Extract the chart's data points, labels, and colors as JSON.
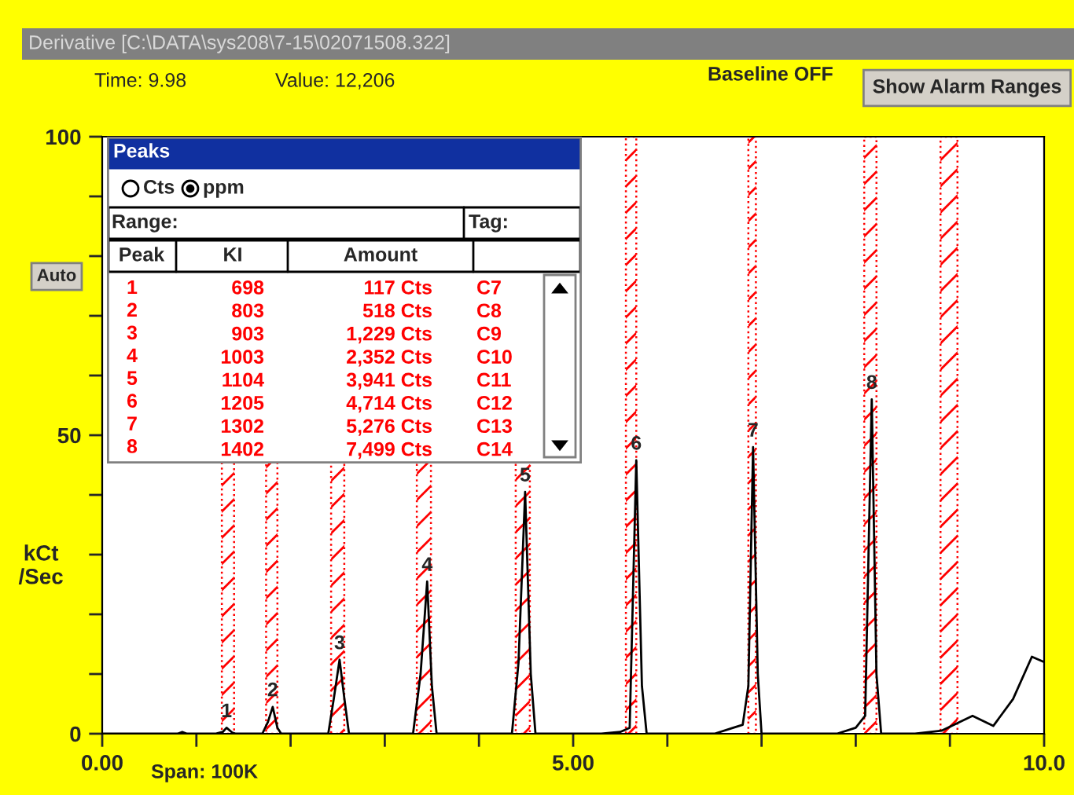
{
  "chart_data": [
    {
      "type": "line",
      "title": "Derivative [C:\\DATA\\sys208\\7-15\\02071508.322]",
      "ylabel": "kCt\n/Sec",
      "xlim": [
        0,
        10
      ],
      "ylim": [
        0,
        100
      ],
      "xticks": [
        {
          "value": 0,
          "label": "0.00"
        },
        {
          "value": 1,
          "label": null
        },
        {
          "value": 2,
          "label": null
        },
        {
          "value": 3,
          "label": null
        },
        {
          "value": 4,
          "label": null
        },
        {
          "value": 5,
          "label": "5.00"
        },
        {
          "value": 6,
          "label": null
        },
        {
          "value": 7,
          "label": null
        },
        {
          "value": 8,
          "label": null
        },
        {
          "value": 9,
          "label": null
        },
        {
          "value": 10,
          "label": "10.0"
        }
      ],
      "yticks": [
        0,
        {
          "value": 10,
          "label": null
        },
        {
          "value": 20,
          "label": null
        },
        {
          "value": 30,
          "label": null
        },
        {
          "value": 40,
          "label": null
        },
        50,
        {
          "value": 60,
          "label": null
        },
        {
          "value": 70,
          "label": null
        },
        {
          "value": 80,
          "label": null
        },
        {
          "value": 90,
          "label": null
        },
        100
      ],
      "grid": false,
      "series": [
        {
          "color": "#000000",
          "x": [
            0,
            0.8,
            0.85,
            0.9,
            1.2,
            1.28,
            1.32,
            1.38,
            1.42,
            1.7,
            1.76,
            1.81,
            1.86,
            1.9,
            2.4,
            2.46,
            2.52,
            2.57,
            2.62,
            3.3,
            3.38,
            3.45,
            3.5,
            3.55,
            4.35,
            4.42,
            4.49,
            4.55,
            4.6,
            5.3,
            5.5,
            5.6,
            5.67,
            5.73,
            5.78,
            6.5,
            6.7,
            6.8,
            6.86,
            6.91,
            6.96,
            7.0,
            7.8,
            8.0,
            8.1,
            8.17,
            8.22,
            8.27,
            8.63,
            8.91,
            9.24,
            9.46,
            9.67,
            9.87,
            10
          ],
          "values": [
            0,
            0,
            0.3,
            0,
            0,
            0.3,
            1,
            0.2,
            0,
            0,
            2,
            4.5,
            1,
            0,
            0,
            6,
            12.4,
            6,
            0,
            0,
            10,
            25.5,
            8,
            0,
            0,
            12,
            40.5,
            10,
            0,
            0,
            0.3,
            1,
            45.8,
            8,
            0,
            0,
            1,
            1.5,
            8,
            48,
            10,
            0,
            0,
            1,
            3,
            56,
            10,
            0,
            0,
            0.5,
            3,
            1.3,
            5.8,
            12.9,
            12
          ]
        }
      ],
      "bands": [
        {
          "axis": "x",
          "from": 1.27,
          "to": 1.4,
          "color": "#ff0000"
        },
        {
          "axis": "x",
          "from": 1.74,
          "to": 1.86,
          "color": "#ff0000"
        },
        {
          "axis": "x",
          "from": 2.43,
          "to": 2.57,
          "color": "#ff0000"
        },
        {
          "axis": "x",
          "from": 3.34,
          "to": 3.49,
          "color": "#ff0000"
        },
        {
          "axis": "x",
          "from": 4.39,
          "to": 4.54,
          "color": "#ff0000"
        },
        {
          "axis": "x",
          "from": 5.56,
          "to": 5.67,
          "color": "#ff0000"
        },
        {
          "axis": "x",
          "from": 6.86,
          "to": 6.94,
          "color": "#ff0000"
        },
        {
          "axis": "x",
          "from": 8.09,
          "to": 8.22,
          "color": "#ff0000"
        },
        {
          "axis": "x",
          "from": 8.9,
          "to": 9.08,
          "color": "#ff0000"
        }
      ],
      "annotations": [
        "Time: 9.98",
        "Value: 12,206",
        "Baseline OFF",
        "Show Alarm Ranges",
        "Auto",
        "Span: 100K",
        {
          "text": "1",
          "x": 1.32,
          "y": 1
        },
        {
          "text": "2",
          "x": 1.81,
          "y": 4.5
        },
        {
          "text": "3",
          "x": 2.52,
          "y": 12.4
        },
        {
          "text": "4",
          "x": 3.45,
          "y": 25.5
        },
        {
          "text": "5",
          "x": 4.49,
          "y": 40.5
        },
        {
          "text": "6",
          "x": 5.67,
          "y": 45.8
        },
        {
          "text": "7",
          "x": 6.91,
          "y": 48
        },
        {
          "text": "8",
          "x": 8.17,
          "y": 56
        }
      ]
    },
    {
      "type": "other",
      "title": "Peaks",
      "annotations": [
        "Cts",
        "ppm",
        "Range:",
        "Tag:",
        "Peak",
        "KI",
        "Amount",
        "1",
        "698",
        "117 Cts",
        "C7",
        "2",
        "803",
        "518 Cts",
        "C8",
        "3",
        "903",
        "1,229 Cts",
        "C9",
        "4",
        "1003",
        "2,352 Cts",
        "C10",
        "5",
        "1104",
        "3,941 Cts",
        "C11",
        "6",
        "1205",
        "4,714 Cts",
        "C12",
        "7",
        "1302",
        "5,276 Cts",
        "C13",
        "8",
        "1402",
        "7,499 Cts",
        "C14"
      ]
    }
  ]
}
